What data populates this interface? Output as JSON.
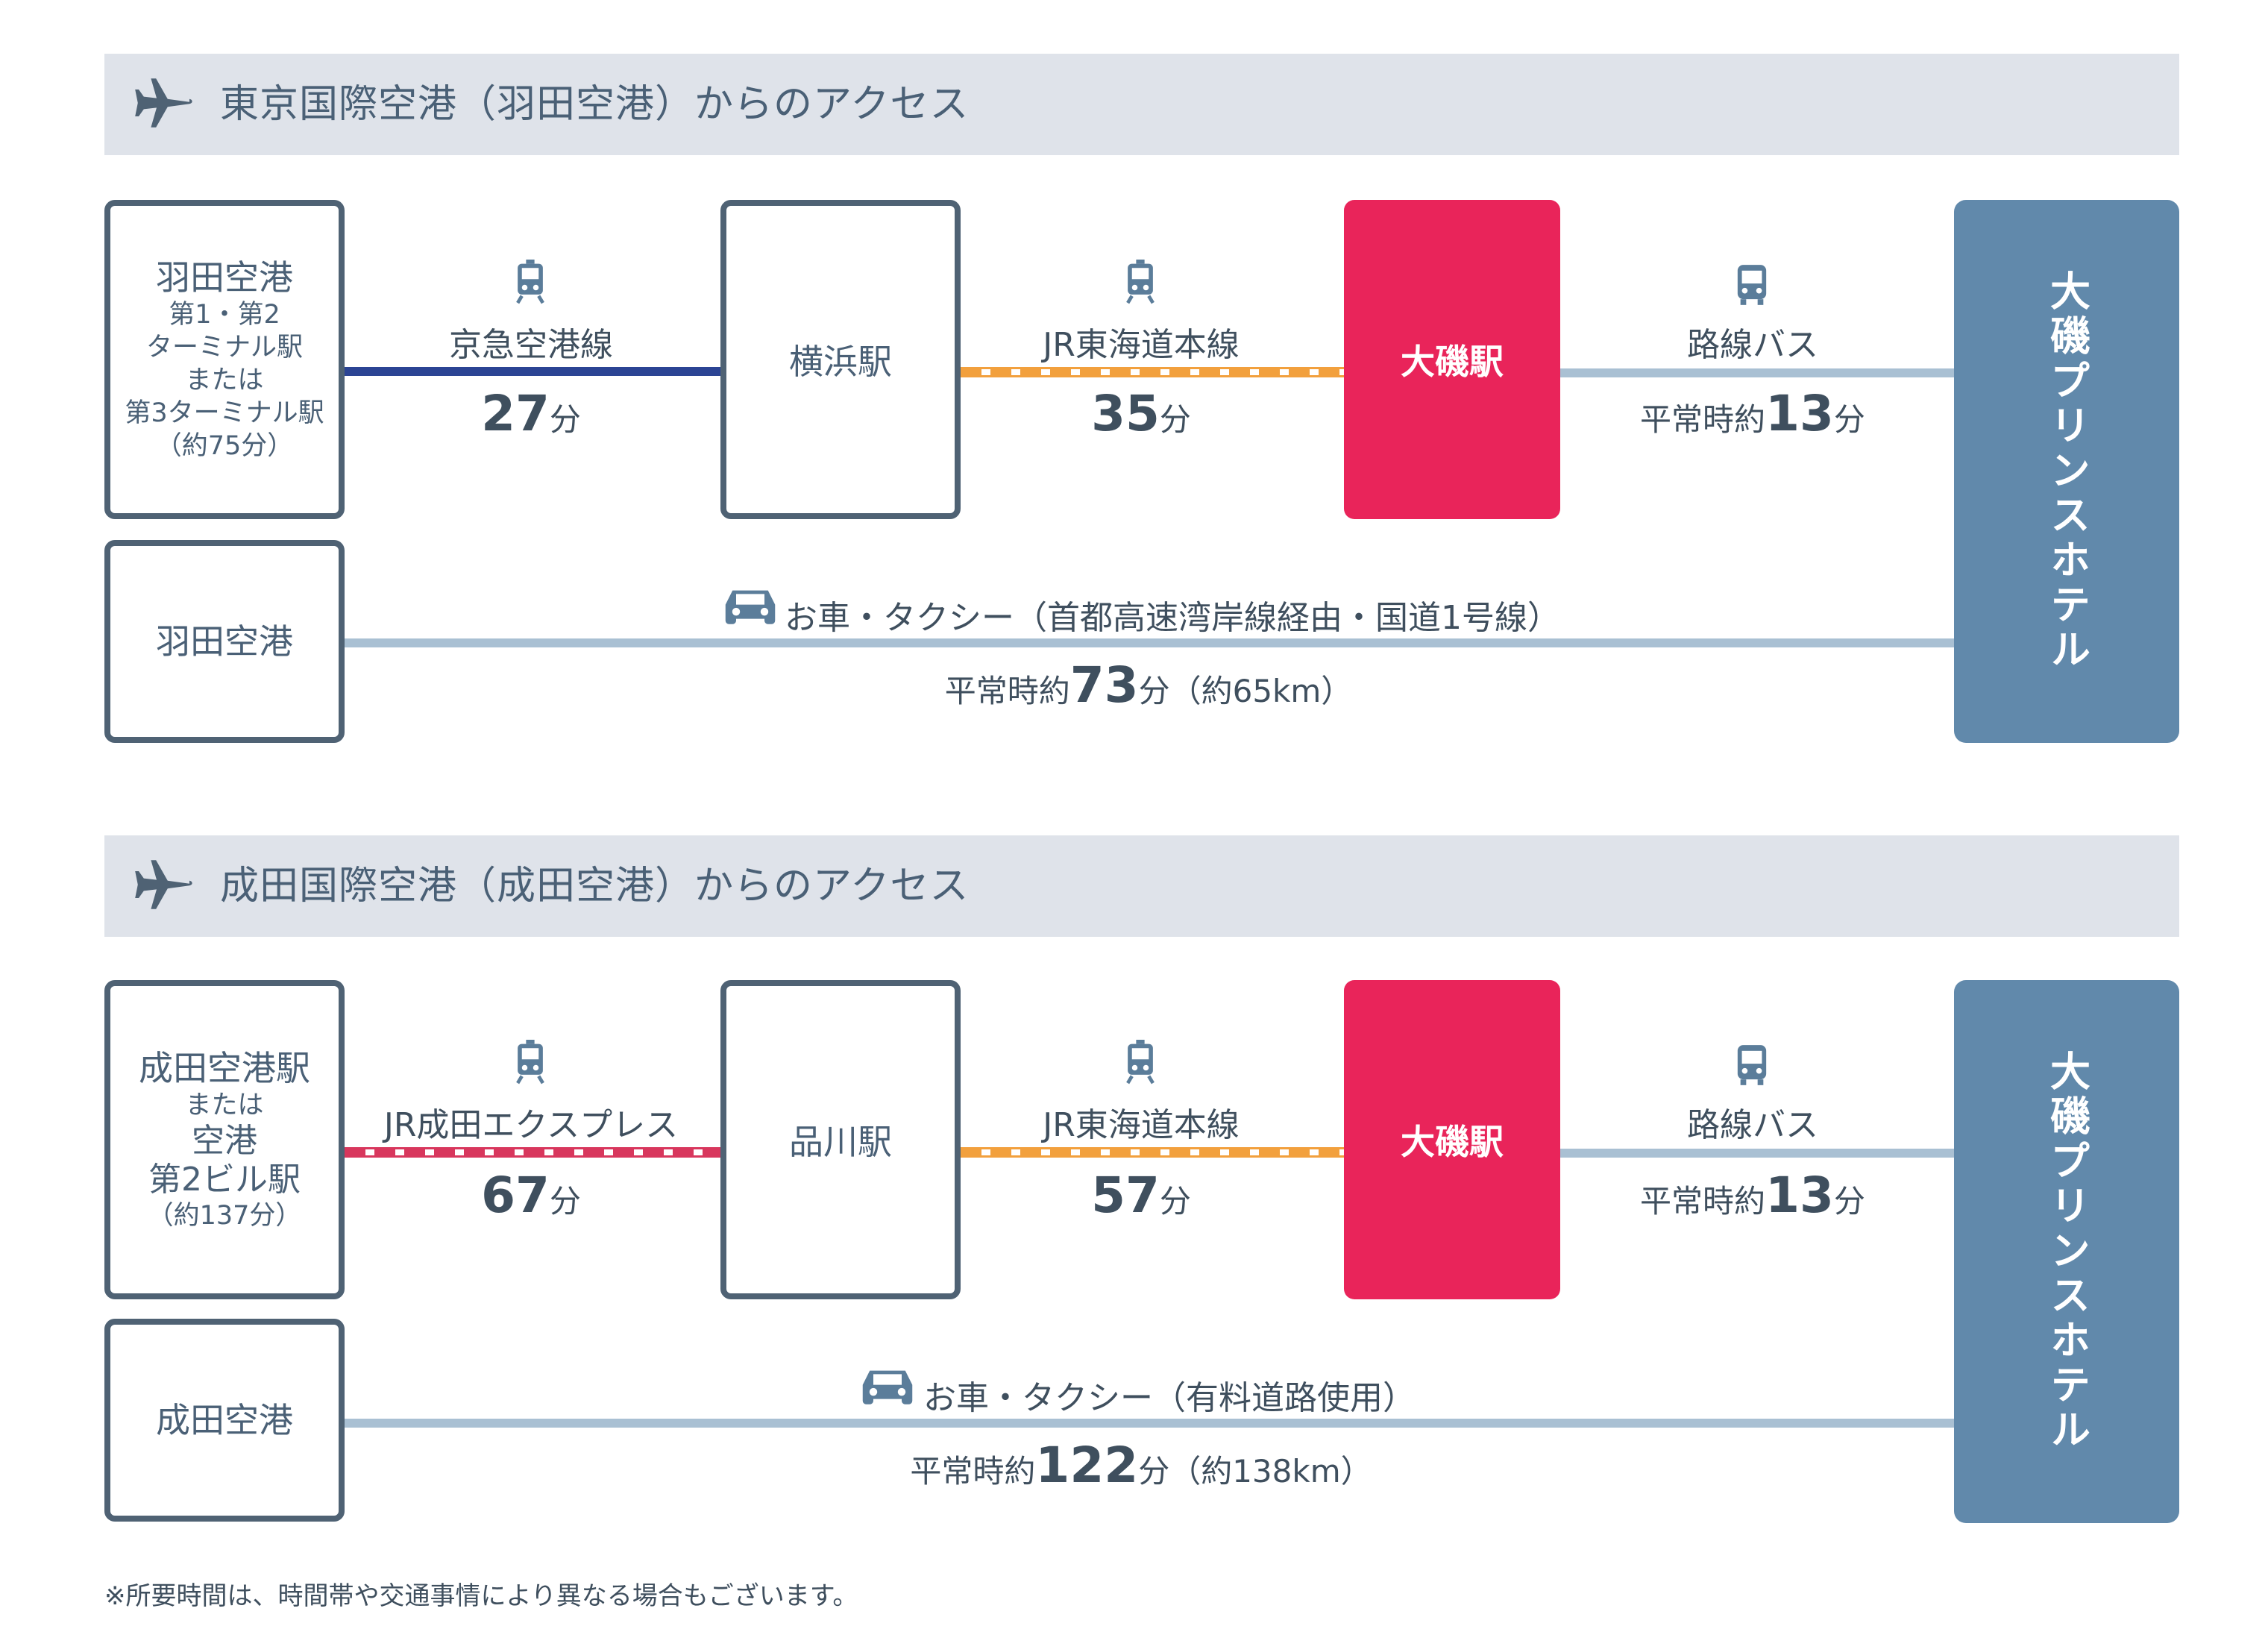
{
  "sections": [
    {
      "title": "東京国際空港（羽田空港）からのアクセス",
      "origin_lines": [
        "羽田空港",
        "第1・第2",
        "ターミナル駅",
        "または",
        "第3ターミナル駅",
        "（約75分）"
      ],
      "route1": {
        "name": "京急空港線",
        "time_num": "27",
        "time_unit": "分"
      },
      "mid_station": "横浜駅",
      "route2": {
        "name": "JR東海道本線",
        "time_num": "35",
        "time_unit": "分"
      },
      "oiso": "大磯駅",
      "route3": {
        "name": "路線バス",
        "prefix": "平常時約",
        "time_num": "13",
        "time_unit": "分"
      },
      "hotel": "大磯プリンスホテル",
      "car_origin": "羽田空港",
      "car_route": "お車・タクシー（首都高速湾岸線経由・国道1号線）",
      "car_prefix": "平常時約",
      "car_time_num": "73",
      "car_time_unit": "分",
      "car_distance": "（約65km）"
    },
    {
      "title": "成田国際空港（成田空港）からのアクセス",
      "origin_lines": [
        "成田空港駅",
        "または",
        "空港",
        "第2ビル駅",
        "（約137分）"
      ],
      "route1": {
        "name": "JR成田エクスプレス",
        "time_num": "67",
        "time_unit": "分"
      },
      "mid_station": "品川駅",
      "route2": {
        "name": "JR東海道本線",
        "time_num": "57",
        "time_unit": "分"
      },
      "oiso": "大磯駅",
      "route3": {
        "name": "路線バス",
        "prefix": "平常時約",
        "time_num": "13",
        "time_unit": "分"
      },
      "hotel": "大磯プリンスホテル",
      "car_origin": "成田空港",
      "car_route": "お車・タクシー（有料道路使用）",
      "car_prefix": "平常時約",
      "car_time_num": "122",
      "car_time_unit": "分",
      "car_distance": "（約138km）"
    }
  ],
  "note": "※所要時間は、時間帯や交通事情により異なる場合もございます。",
  "colors": {
    "header_bg": "#dfe3ea",
    "box_border": "#4f6274",
    "keikyu_line": "#2b4494",
    "jr_tokaido_line": "#f2a03d",
    "narita_express_line": "#d8375d",
    "bus_line": "#a9c0d3",
    "oiso_station": "#e9245a",
    "hotel": "#6189ab"
  },
  "icons": [
    "plane-icon",
    "train-icon",
    "bus-icon",
    "car-icon"
  ]
}
